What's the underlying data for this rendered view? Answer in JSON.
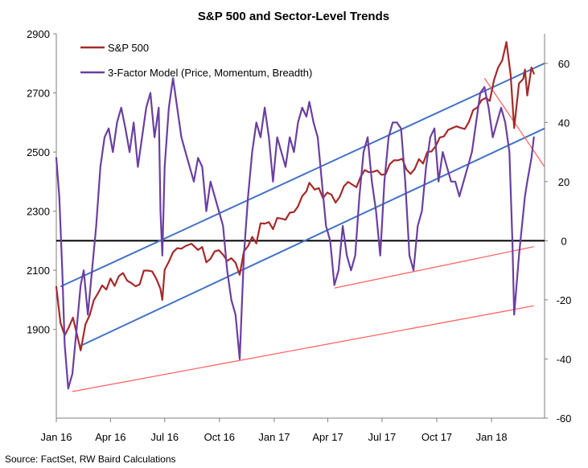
{
  "chart_data": {
    "type": "line",
    "title": "S&P 500 and Sector-Level Trends",
    "source": "Source: FactSet, RW Baird Calculations",
    "x_ticks": [
      "Jan 16",
      "Apr 16",
      "Jul 16",
      "Oct 16",
      "Jan 17",
      "Apr 17",
      "Jul 17",
      "Oct 17",
      "Jan 18"
    ],
    "x_tick_dates": [
      "2016-01-01",
      "2016-04-01",
      "2016-07-01",
      "2016-10-01",
      "2017-01-01",
      "2017-04-01",
      "2017-07-01",
      "2017-10-01",
      "2018-01-01"
    ],
    "x_range": [
      "2016-01-01",
      "2018-03-31"
    ],
    "y_left": {
      "ticks": [
        1900,
        2100,
        2300,
        2500,
        2700,
        2900
      ],
      "range": [
        1600,
        2900
      ]
    },
    "y_right": {
      "ticks": [
        -60,
        -40,
        -20,
        0,
        20,
        40,
        60
      ],
      "range": [
        -60,
        70
      ]
    },
    "legend_position": "top-left",
    "grid": false,
    "series": [
      {
        "name": "S&P 500",
        "axis": "left",
        "color": "#a52a2a",
        "points": [
          [
            "2016-01-01",
            2044
          ],
          [
            "2016-01-08",
            1922
          ],
          [
            "2016-01-15",
            1880
          ],
          [
            "2016-01-22",
            1907
          ],
          [
            "2016-01-29",
            1940
          ],
          [
            "2016-02-05",
            1880
          ],
          [
            "2016-02-11",
            1829
          ],
          [
            "2016-02-19",
            1918
          ],
          [
            "2016-02-26",
            1948
          ],
          [
            "2016-03-04",
            1999
          ],
          [
            "2016-03-11",
            2022
          ],
          [
            "2016-03-18",
            2049
          ],
          [
            "2016-03-25",
            2035
          ],
          [
            "2016-04-01",
            2072
          ],
          [
            "2016-04-08",
            2047
          ],
          [
            "2016-04-15",
            2080
          ],
          [
            "2016-04-22",
            2091
          ],
          [
            "2016-04-29",
            2065
          ],
          [
            "2016-05-06",
            2057
          ],
          [
            "2016-05-13",
            2046
          ],
          [
            "2016-05-20",
            2052
          ],
          [
            "2016-05-27",
            2099
          ],
          [
            "2016-06-03",
            2099
          ],
          [
            "2016-06-10",
            2096
          ],
          [
            "2016-06-17",
            2071
          ],
          [
            "2016-06-24",
            2037
          ],
          [
            "2016-06-27",
            2000
          ],
          [
            "2016-07-01",
            2102
          ],
          [
            "2016-07-08",
            2129
          ],
          [
            "2016-07-15",
            2161
          ],
          [
            "2016-07-22",
            2175
          ],
          [
            "2016-07-29",
            2173
          ],
          [
            "2016-08-05",
            2182
          ],
          [
            "2016-08-15",
            2190
          ],
          [
            "2016-08-26",
            2169
          ],
          [
            "2016-09-02",
            2179
          ],
          [
            "2016-09-09",
            2127
          ],
          [
            "2016-09-16",
            2139
          ],
          [
            "2016-09-23",
            2164
          ],
          [
            "2016-09-30",
            2168
          ],
          [
            "2016-10-07",
            2153
          ],
          [
            "2016-10-14",
            2132
          ],
          [
            "2016-10-21",
            2141
          ],
          [
            "2016-10-28",
            2126
          ],
          [
            "2016-11-04",
            2085
          ],
          [
            "2016-11-11",
            2164
          ],
          [
            "2016-11-18",
            2182
          ],
          [
            "2016-11-25",
            2213
          ],
          [
            "2016-12-02",
            2191
          ],
          [
            "2016-12-09",
            2259
          ],
          [
            "2016-12-16",
            2258
          ],
          [
            "2016-12-23",
            2263
          ],
          [
            "2016-12-30",
            2239
          ],
          [
            "2017-01-06",
            2277
          ],
          [
            "2017-01-13",
            2275
          ],
          [
            "2017-01-20",
            2271
          ],
          [
            "2017-01-27",
            2295
          ],
          [
            "2017-02-03",
            2297
          ],
          [
            "2017-02-10",
            2316
          ],
          [
            "2017-02-17",
            2351
          ],
          [
            "2017-02-24",
            2367
          ],
          [
            "2017-03-01",
            2396
          ],
          [
            "2017-03-10",
            2373
          ],
          [
            "2017-03-17",
            2378
          ],
          [
            "2017-03-24",
            2344
          ],
          [
            "2017-03-31",
            2363
          ],
          [
            "2017-04-07",
            2356
          ],
          [
            "2017-04-14",
            2329
          ],
          [
            "2017-04-21",
            2349
          ],
          [
            "2017-04-28",
            2384
          ],
          [
            "2017-05-05",
            2399
          ],
          [
            "2017-05-12",
            2390
          ],
          [
            "2017-05-19",
            2381
          ],
          [
            "2017-05-26",
            2416
          ],
          [
            "2017-06-02",
            2439
          ],
          [
            "2017-06-09",
            2432
          ],
          [
            "2017-06-16",
            2433
          ],
          [
            "2017-06-23",
            2438
          ],
          [
            "2017-06-30",
            2423
          ],
          [
            "2017-07-07",
            2425
          ],
          [
            "2017-07-14",
            2459
          ],
          [
            "2017-07-21",
            2472
          ],
          [
            "2017-07-28",
            2472
          ],
          [
            "2017-08-04",
            2477
          ],
          [
            "2017-08-11",
            2441
          ],
          [
            "2017-08-18",
            2426
          ],
          [
            "2017-08-25",
            2443
          ],
          [
            "2017-09-01",
            2476
          ],
          [
            "2017-09-08",
            2461
          ],
          [
            "2017-09-15",
            2500
          ],
          [
            "2017-09-22",
            2502
          ],
          [
            "2017-09-29",
            2519
          ],
          [
            "2017-10-06",
            2549
          ],
          [
            "2017-10-13",
            2553
          ],
          [
            "2017-10-20",
            2575
          ],
          [
            "2017-10-27",
            2581
          ],
          [
            "2017-11-03",
            2587
          ],
          [
            "2017-11-10",
            2582
          ],
          [
            "2017-11-17",
            2578
          ],
          [
            "2017-11-24",
            2602
          ],
          [
            "2017-12-01",
            2642
          ],
          [
            "2017-12-08",
            2651
          ],
          [
            "2017-12-15",
            2675
          ],
          [
            "2017-12-22",
            2683
          ],
          [
            "2017-12-29",
            2673
          ],
          [
            "2018-01-05",
            2743
          ],
          [
            "2018-01-12",
            2786
          ],
          [
            "2018-01-19",
            2810
          ],
          [
            "2018-01-26",
            2872
          ],
          [
            "2018-02-02",
            2762
          ],
          [
            "2018-02-08",
            2581
          ],
          [
            "2018-02-16",
            2732
          ],
          [
            "2018-02-23",
            2747
          ],
          [
            "2018-02-26",
            2779
          ],
          [
            "2018-03-02",
            2691
          ],
          [
            "2018-03-09",
            2786
          ],
          [
            "2018-03-13",
            2765
          ]
        ]
      },
      {
        "name": "3-Factor Model (Price, Momentum, Breadth)",
        "axis": "right",
        "color": "#6a3fa0",
        "points": [
          [
            "2016-01-01",
            28
          ],
          [
            "2016-01-06",
            15
          ],
          [
            "2016-01-11",
            -10
          ],
          [
            "2016-01-15",
            -35
          ],
          [
            "2016-01-21",
            -50
          ],
          [
            "2016-01-28",
            -45
          ],
          [
            "2016-02-04",
            -30
          ],
          [
            "2016-02-11",
            -15
          ],
          [
            "2016-02-16",
            -10
          ],
          [
            "2016-02-23",
            -25
          ],
          [
            "2016-03-01",
            -10
          ],
          [
            "2016-03-08",
            5
          ],
          [
            "2016-03-15",
            25
          ],
          [
            "2016-03-22",
            35
          ],
          [
            "2016-03-29",
            38
          ],
          [
            "2016-04-05",
            30
          ],
          [
            "2016-04-12",
            40
          ],
          [
            "2016-04-19",
            45
          ],
          [
            "2016-04-26",
            38
          ],
          [
            "2016-05-03",
            30
          ],
          [
            "2016-05-10",
            40
          ],
          [
            "2016-05-17",
            25
          ],
          [
            "2016-05-24",
            35
          ],
          [
            "2016-05-31",
            45
          ],
          [
            "2016-06-07",
            50
          ],
          [
            "2016-06-14",
            35
          ],
          [
            "2016-06-21",
            45
          ],
          [
            "2016-06-24",
            10
          ],
          [
            "2016-06-27",
            -5
          ],
          [
            "2016-07-01",
            25
          ],
          [
            "2016-07-08",
            45
          ],
          [
            "2016-07-15",
            55
          ],
          [
            "2016-07-22",
            45
          ],
          [
            "2016-07-29",
            35
          ],
          [
            "2016-08-05",
            30
          ],
          [
            "2016-08-12",
            25
          ],
          [
            "2016-08-19",
            20
          ],
          [
            "2016-08-26",
            28
          ],
          [
            "2016-09-02",
            25
          ],
          [
            "2016-09-09",
            10
          ],
          [
            "2016-09-16",
            20
          ],
          [
            "2016-09-23",
            15
          ],
          [
            "2016-09-30",
            10
          ],
          [
            "2016-10-07",
            5
          ],
          [
            "2016-10-14",
            -10
          ],
          [
            "2016-10-21",
            -20
          ],
          [
            "2016-10-28",
            -25
          ],
          [
            "2016-11-04",
            -40
          ],
          [
            "2016-11-11",
            -5
          ],
          [
            "2016-11-18",
            15
          ],
          [
            "2016-11-25",
            30
          ],
          [
            "2016-12-02",
            40
          ],
          [
            "2016-12-09",
            35
          ],
          [
            "2016-12-16",
            45
          ],
          [
            "2016-12-23",
            35
          ],
          [
            "2016-12-30",
            20
          ],
          [
            "2017-01-06",
            35
          ],
          [
            "2017-01-13",
            30
          ],
          [
            "2017-01-20",
            25
          ],
          [
            "2017-01-27",
            35
          ],
          [
            "2017-02-03",
            30
          ],
          [
            "2017-02-10",
            40
          ],
          [
            "2017-02-17",
            45
          ],
          [
            "2017-02-24",
            42
          ],
          [
            "2017-03-01",
            47
          ],
          [
            "2017-03-08",
            40
          ],
          [
            "2017-03-15",
            35
          ],
          [
            "2017-03-22",
            20
          ],
          [
            "2017-03-29",
            5
          ],
          [
            "2017-04-05",
            0
          ],
          [
            "2017-04-12",
            -15
          ],
          [
            "2017-04-19",
            -10
          ],
          [
            "2017-04-26",
            5
          ],
          [
            "2017-05-03",
            -5
          ],
          [
            "2017-05-10",
            -10
          ],
          [
            "2017-05-17",
            -5
          ],
          [
            "2017-05-24",
            15
          ],
          [
            "2017-05-31",
            30
          ],
          [
            "2017-06-07",
            35
          ],
          [
            "2017-06-14",
            20
          ],
          [
            "2017-06-21",
            10
          ],
          [
            "2017-06-28",
            -5
          ],
          [
            "2017-07-05",
            20
          ],
          [
            "2017-07-12",
            35
          ],
          [
            "2017-07-19",
            40
          ],
          [
            "2017-07-26",
            40
          ],
          [
            "2017-08-02",
            38
          ],
          [
            "2017-08-09",
            20
          ],
          [
            "2017-08-16",
            -5
          ],
          [
            "2017-08-23",
            -10
          ],
          [
            "2017-08-30",
            5
          ],
          [
            "2017-09-06",
            10
          ],
          [
            "2017-09-13",
            25
          ],
          [
            "2017-09-20",
            35
          ],
          [
            "2017-09-27",
            38
          ],
          [
            "2017-10-04",
            20
          ],
          [
            "2017-10-11",
            30
          ],
          [
            "2017-10-18",
            25
          ],
          [
            "2017-10-25",
            20
          ],
          [
            "2017-11-01",
            20
          ],
          [
            "2017-11-08",
            15
          ],
          [
            "2017-11-15",
            20
          ],
          [
            "2017-11-22",
            25
          ],
          [
            "2017-11-29",
            30
          ],
          [
            "2017-12-06",
            40
          ],
          [
            "2017-12-13",
            50
          ],
          [
            "2017-12-20",
            52
          ],
          [
            "2017-12-27",
            45
          ],
          [
            "2018-01-03",
            35
          ],
          [
            "2018-01-10",
            40
          ],
          [
            "2018-01-17",
            45
          ],
          [
            "2018-01-24",
            40
          ],
          [
            "2018-01-31",
            30
          ],
          [
            "2018-02-05",
            0
          ],
          [
            "2018-02-08",
            -25
          ],
          [
            "2018-02-12",
            -15
          ],
          [
            "2018-02-16",
            -5
          ],
          [
            "2018-02-21",
            5
          ],
          [
            "2018-02-26",
            15
          ],
          [
            "2018-03-02",
            20
          ],
          [
            "2018-03-09",
            28
          ],
          [
            "2018-03-13",
            35
          ]
        ]
      }
    ],
    "trend_lines": [
      {
        "color": "#4472c4",
        "axis": "left",
        "points": [
          [
            "2016-01-08",
            2045
          ],
          [
            "2018-03-31",
            2800
          ]
        ]
      },
      {
        "color": "#4472c4",
        "axis": "left",
        "points": [
          [
            "2016-02-11",
            1845
          ],
          [
            "2018-03-31",
            2580
          ]
        ]
      },
      {
        "color": "#ff6666",
        "axis": "right",
        "points": [
          [
            "2016-01-28",
            -51
          ],
          [
            "2018-03-13",
            -22
          ]
        ]
      },
      {
        "color": "#ff6666",
        "axis": "right",
        "points": [
          [
            "2017-04-12",
            -16
          ],
          [
            "2018-03-13",
            -2
          ]
        ]
      },
      {
        "color": "#ff6666",
        "axis": "right",
        "points": [
          [
            "2017-12-20",
            55
          ],
          [
            "2018-03-31",
            25
          ]
        ]
      }
    ],
    "zero_line": {
      "axis": "right",
      "value": 0,
      "color": "#000000"
    }
  }
}
